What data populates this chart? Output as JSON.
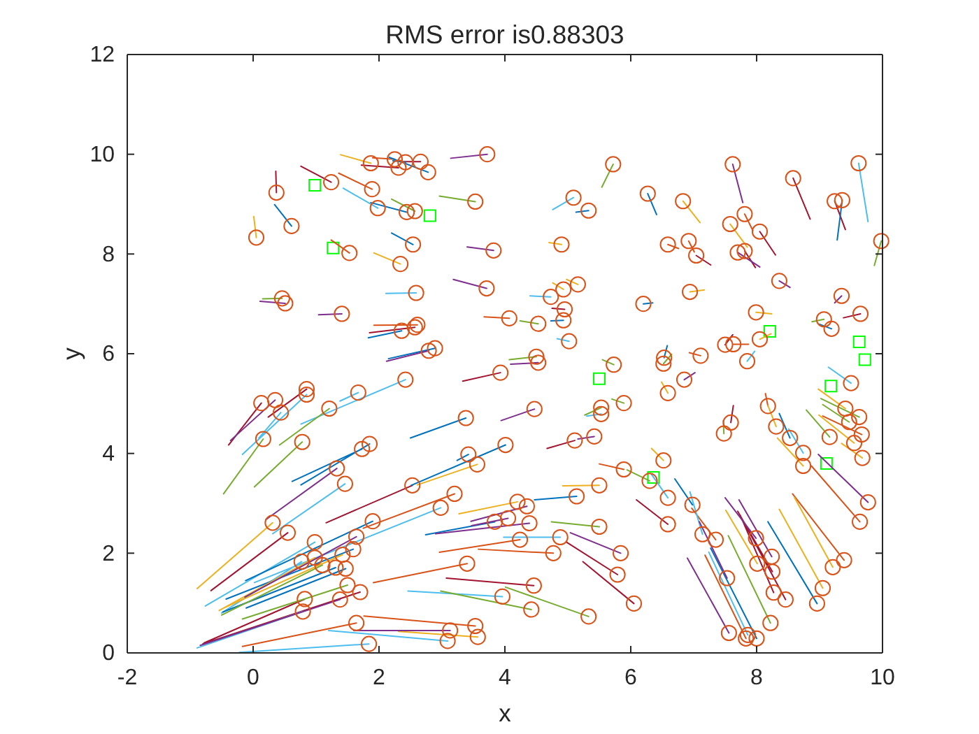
{
  "chart_data": {
    "type": "scatter",
    "title": "RMS error is0.88303",
    "xlabel": "x",
    "ylabel": "y",
    "xlim": [
      -2,
      10
    ],
    "xticks": [
      -2,
      0,
      2,
      4,
      6,
      8,
      10
    ],
    "ylim": [
      0,
      12
    ],
    "yticks": [
      0,
      2,
      4,
      6,
      8,
      10,
      12
    ],
    "series": [
      {
        "marker": "square",
        "color": "#00ff00",
        "x": [
          0.98,
          1.27,
          2.81,
          8.21,
          9.63,
          9.72,
          5.5,
          9.18,
          9.11,
          6.36
        ],
        "values": [
          9.38,
          8.12,
          8.77,
          6.45,
          6.24,
          5.88,
          5.5,
          5.35,
          3.8,
          3.52
        ]
      },
      {
        "type": "line",
        "color": "#a2142f",
        "x": [
          0.76,
          1.24,
          null,
          0.36,
          0.37,
          null,
          2.35,
          2.66,
          null,
          1.72,
          2.31,
          null,
          4.75,
          4.95,
          null,
          1.85,
          2.57,
          null,
          8.85,
          8.58,
          null,
          9.41,
          9.24,
          null,
          8.3,
          8.05,
          null,
          7.27,
          7.04,
          null,
          7.98,
          7.81,
          null,
          9.38,
          9.65,
          null,
          7.62,
          7.5,
          null,
          -0.39,
          0.13,
          null,
          0.24,
          0.85,
          null,
          -0.67,
          0.55,
          null,
          -0.8,
          1.7,
          null,
          -0.78,
          0.82,
          null,
          3.33,
          3.93,
          null,
          4.67,
          5.11,
          null,
          1.16,
          2.53,
          null,
          4.98,
          5.79,
          null,
          5.24,
          6.05,
          null,
          3.07,
          4.46,
          null,
          7.63,
          7.59,
          null,
          7.7,
          8.25,
          null,
          7.74,
          8.27,
          null,
          7.78,
          8.46,
          null,
          6.09,
          6.59
        ],
        "values": [
          9.76,
          9.44,
          null,
          9.66,
          9.23,
          null,
          9.85,
          9.85,
          null,
          9.78,
          9.73,
          null,
          6.91,
          6.89,
          null,
          6.42,
          6.53,
          null,
          8.7,
          9.52,
          null,
          8.49,
          9.06,
          null,
          7.98,
          8.45,
          null,
          7.78,
          7.97,
          null,
          7.73,
          8.06,
          null,
          6.72,
          6.8,
          null,
          6.38,
          6.18,
          null,
          4.17,
          5.01,
          null,
          4.73,
          5.29,
          null,
          1.25,
          2.41,
          null,
          0.18,
          1.22,
          null,
          0.2,
          1.08,
          null,
          5.45,
          5.62,
          null,
          4.1,
          4.26,
          null,
          2.61,
          3.36,
          null,
          2.22,
          1.57,
          null,
          1.83,
          0.99,
          null,
          1.5,
          1.35,
          null,
          4.96,
          4.62,
          null,
          2.84,
          1.63,
          null,
          2.76,
          1.21,
          null,
          2.66,
          1.07,
          null,
          3.07,
          2.58
        ]
      },
      {
        "type": "line",
        "color": "#d95319",
        "x": [
          1.36,
          1.89,
          null,
          1.24,
          1.53,
          null,
          1.9,
          2.25,
          null,
          3.67,
          4.07,
          null,
          1.92,
          2.61,
          null,
          7.94,
          7.81,
          null,
          6.76,
          6.59,
          null,
          7.01,
          6.92,
          null,
          7.87,
          7.63,
          null,
          -0.17,
          1.64,
          null,
          5.5,
          5.89,
          null,
          1.75,
          3.2,
          null,
          2.96,
          4.24,
          null,
          3.58,
          4.77,
          null,
          1.91,
          3.4,
          null,
          1.76,
          3.53,
          null,
          6.93,
          7.11,
          null,
          8.14,
          8.18,
          null,
          9.05,
          9.67,
          null,
          8.87,
          9.64,
          null,
          8.57,
          9.39,
          null,
          7.18,
          7.83,
          null,
          6.97,
          7.35
        ],
        "values": [
          9.62,
          9.3,
          null,
          8.28,
          8.02,
          null,
          9.93,
          9.9,
          null,
          6.74,
          6.71,
          null,
          6.57,
          6.58,
          null,
          8.47,
          8.8,
          null,
          8.11,
          8.19,
          null,
          8.04,
          8.26,
          null,
          6.19,
          6.19,
          null,
          0.13,
          0.6,
          null,
          3.79,
          3.68,
          null,
          2.5,
          3.19,
          null,
          2.02,
          2.27,
          null,
          2.08,
          2.0,
          null,
          1.41,
          1.79,
          null,
          0.74,
          0.54,
          null,
          6.02,
          5.96,
          null,
          5.2,
          4.95,
          null,
          4.75,
          4.38,
          null,
          3.75,
          2.63,
          null,
          3.19,
          1.86,
          null,
          1.96,
          0.29,
          null,
          2.9,
          2.27
        ]
      },
      {
        "type": "line",
        "color": "#4dbeee",
        "x": [
          1.43,
          1.98,
          null,
          2.11,
          2.59,
          null,
          4.4,
          4.73,
          null,
          4.83,
          5.02,
          null,
          4.76,
          5.09,
          null,
          9.77,
          9.62,
          null,
          -0.17,
          0.85,
          null,
          0.09,
          0.44,
          null,
          1.38,
          1.67,
          null,
          0.76,
          2.42,
          null,
          0.31,
          1.46,
          null,
          -0.76,
          0.98,
          null,
          -0.5,
          0.77,
          null,
          -0.89,
          0.79,
          null,
          -0.22,
          1.84,
          null,
          5.3,
          5.53,
          null,
          0.02,
          2.98,
          null,
          3.98,
          4.88,
          null,
          2.46,
          3.96,
          null,
          1.2,
          3.09,
          null,
          7.97,
          7.85,
          null,
          8.51,
          8.74,
          null,
          9.14,
          9.5,
          null,
          7.24,
          7.86,
          null,
          6.94,
          7.14,
          null,
          6.33,
          6.59
        ],
        "values": [
          9.32,
          8.92,
          null,
          7.21,
          7.22,
          null,
          7.16,
          7.14,
          null,
          6.3,
          6.25,
          null,
          8.89,
          9.13,
          null,
          8.65,
          9.82,
          null,
          3.98,
          5.18,
          null,
          4.31,
          4.82,
          null,
          5.05,
          5.22,
          null,
          4.59,
          5.48,
          null,
          2.39,
          3.39,
          null,
          0.94,
          2.22,
          null,
          0.8,
          1.83,
          null,
          0.1,
          0.83,
          null,
          0.01,
          0.18,
          null,
          4.75,
          4.79,
          null,
          1.41,
          2.91,
          null,
          2.32,
          2.32,
          null,
          1.24,
          1.13,
          null,
          0.45,
          0.24,
          null,
          6.05,
          5.85,
          null,
          4.49,
          4.01,
          null,
          5.73,
          5.41,
          null,
          2.02,
          0.36,
          null,
          3.23,
          2.38,
          null,
          3.58,
          3.11
        ]
      },
      {
        "type": "line",
        "color": "#0072bd",
        "x": [
          0.34,
          0.61,
          null,
          2.22,
          2.42,
          null,
          2.16,
          2.78,
          null,
          1.87,
          2.44,
          null,
          2.2,
          2.54,
          null,
          4.73,
          4.93,
          null,
          5.13,
          5.33,
          null,
          1.83,
          2.36,
          null,
          2.15,
          2.89,
          null,
          9.28,
          9.36,
          null,
          6.41,
          6.27,
          null,
          9.0,
          9.19,
          null,
          6.35,
          6.2,
          null,
          0.62,
          1.73,
          null,
          0.76,
          1.85,
          null,
          -0.12,
          1.9,
          null,
          -0.43,
          1.59,
          null,
          -0.48,
          1.31,
          null,
          -0.11,
          1.47,
          null,
          2.5,
          3.38,
          null,
          2.51,
          4.01,
          null,
          3.24,
          3.42,
          null,
          4.47,
          5.14,
          null,
          2.74,
          3.84,
          null,
          6.58,
          6.53,
          null,
          8.36,
          8.53,
          null,
          8.18,
          8.96,
          null,
          7.27,
          8.0,
          null,
          6.7,
          6.98
        ],
        "values": [
          8.99,
          8.56,
          null,
          9.87,
          9.84,
          null,
          9.94,
          9.64,
          null,
          9.03,
          8.84,
          null,
          8.42,
          8.19,
          null,
          6.66,
          6.67,
          null,
          8.84,
          8.87,
          null,
          6.32,
          6.46,
          null,
          5.9,
          6.11,
          null,
          8.28,
          9.08,
          null,
          8.79,
          9.21,
          null,
          6.59,
          6.5,
          null,
          7.02,
          7.0,
          null,
          3.44,
          4.09,
          null,
          3.37,
          4.19,
          null,
          1.45,
          2.64,
          null,
          1.08,
          2.08,
          null,
          0.82,
          1.71,
          null,
          0.9,
          1.69,
          null,
          4.31,
          4.71,
          null,
          3.36,
          4.17,
          null,
          3.86,
          3.98,
          null,
          3.07,
          3.14,
          null,
          2.37,
          2.63,
          null,
          6.16,
          5.92,
          null,
          4.8,
          4.31,
          null,
          2.63,
          0.99,
          null,
          2.1,
          0.29,
          null,
          3.49,
          2.97
        ]
      },
      {
        "type": "line",
        "color": "#edb120",
        "x": [
          0.01,
          0.05,
          null,
          1.39,
          1.87,
          null,
          1.92,
          2.34,
          null,
          4.76,
          4.93,
          null,
          4.98,
          5.16,
          null,
          4.7,
          4.9,
          null,
          7.1,
          6.83,
          null,
          7.85,
          7.58,
          null,
          7.17,
          6.94,
          null,
          8.24,
          7.99,
          null,
          8.23,
          8.05,
          null,
          -0.89,
          0.31,
          null,
          -0.54,
          0.98,
          null,
          -0.47,
          1.42,
          null,
          2.61,
          3.56,
          null,
          4.92,
          5.5,
          null,
          3.27,
          4.2,
          null,
          2.31,
          3.57,
          null,
          6.49,
          6.59,
          null,
          8.18,
          8.31,
          null,
          8.33,
          8.74,
          null,
          8.98,
          9.41,
          null,
          8.99,
          9.55,
          null,
          9.35,
          9.68,
          null,
          8.6,
          9.21,
          null,
          8.36,
          9.05,
          null,
          7.51,
          8.01,
          null,
          6.33,
          6.52
        ],
        "values": [
          8.75,
          8.33,
          null,
          9.99,
          9.82,
          null,
          8.02,
          7.8,
          null,
          7.42,
          7.29,
          null,
          7.49,
          7.39,
          null,
          8.23,
          8.19,
          null,
          8.63,
          9.06,
          null,
          8.14,
          8.6,
          null,
          7.28,
          7.24,
          null,
          6.8,
          6.83,
          null,
          6.4,
          6.29,
          null,
          1.29,
          2.61,
          null,
          0.85,
          1.91,
          null,
          0.9,
          1.97,
          null,
          3.37,
          3.78,
          null,
          3.35,
          3.36,
          null,
          2.79,
          3.03,
          null,
          0.43,
          0.32,
          null,
          5.43,
          5.21,
          null,
          4.96,
          4.54,
          null,
          4.31,
          3.75,
          null,
          5.29,
          4.9,
          null,
          4.77,
          4.21,
          null,
          4.2,
          3.91,
          null,
          3.12,
          1.72,
          null,
          2.88,
          1.3,
          null,
          2.86,
          1.79,
          null,
          4.1,
          3.86
        ]
      },
      {
        "type": "line",
        "color": "#77ac30",
        "x": [
          0.15,
          0.46,
          null,
          2.2,
          2.57,
          null,
          2.96,
          3.53,
          null,
          4.24,
          4.53,
          null,
          5.54,
          5.72,
          null,
          9.87,
          9.98,
          null,
          8.88,
          9.07,
          null,
          -0.47,
          0.16,
          null,
          0.02,
          0.78,
          null,
          0.42,
          1.21,
          null,
          -0.5,
          1.1,
          null,
          -0.17,
          1.5,
          null,
          4.07,
          4.5,
          null,
          5.55,
          5.73,
          null,
          5.7,
          5.89,
          null,
          5.27,
          5.53,
          null,
          4.74,
          5.5,
          null,
          2.98,
          4.42,
          null,
          4.01,
          5.33,
          null,
          6.65,
          6.52,
          null,
          7.47,
          7.48,
          null,
          9.02,
          9.63,
          null,
          9.05,
          9.47,
          null,
          8.79,
          9.16,
          null,
          7.55,
          8.22,
          null,
          5.94,
          6.3
        ],
        "values": [
          7.1,
          7.11,
          null,
          9.1,
          8.86,
          null,
          9.16,
          9.05,
          null,
          6.66,
          6.6,
          null,
          9.34,
          9.8,
          null,
          7.77,
          8.26,
          null,
          6.64,
          6.69,
          null,
          3.19,
          4.29,
          null,
          3.33,
          4.23,
          null,
          4.17,
          4.9,
          null,
          0.76,
          1.76,
          null,
          0.68,
          1.36,
          null,
          5.88,
          5.94,
          null,
          5.88,
          5.78,
          null,
          5.09,
          5.01,
          null,
          4.77,
          4.92,
          null,
          2.63,
          2.53,
          null,
          1.24,
          0.87,
          null,
          1.32,
          0.73,
          null,
          5.99,
          5.8,
          null,
          4.66,
          4.4,
          null,
          5.1,
          4.73,
          null,
          4.98,
          4.63,
          null,
          4.87,
          4.33,
          null,
          2.35,
          0.6,
          null,
          3.67,
          3.45
        ]
      },
      {
        "type": "line",
        "color": "#7e2f8e",
        "x": [
          0.11,
          0.51,
          null,
          1.04,
          1.41,
          null,
          3.14,
          3.72,
          null,
          3.4,
          3.82,
          null,
          3.18,
          3.71,
          null,
          2.12,
          2.79,
          null,
          7.78,
          7.62,
          null,
          8.05,
          7.7,
          null,
          8.53,
          8.36,
          null,
          9.24,
          9.35,
          null,
          -0.36,
          0.35,
          null,
          0.2,
          1.33,
          null,
          -0.13,
          1.64,
          null,
          -0.84,
          1.38,
          null,
          4.09,
          4.53,
          null,
          3.94,
          4.47,
          null,
          5.16,
          5.42,
          null,
          3.46,
          4.35,
          null,
          3.47,
          4.05,
          null,
          2.9,
          4.39,
          null,
          5.04,
          5.84,
          null,
          1.6,
          3.13,
          null,
          7.02,
          6.85,
          null,
          8.98,
          9.77,
          null,
          7.5,
          7.99,
          null,
          7.72,
          8.24,
          null,
          6.9,
          7.56,
          null,
          7.09,
          7.53
        ],
        "values": [
          7.05,
          7.01,
          null,
          6.78,
          6.8,
          null,
          9.92,
          10.0,
          null,
          8.14,
          8.07,
          null,
          7.49,
          7.31,
          null,
          5.85,
          6.06,
          null,
          9.03,
          9.8,
          null,
          7.74,
          8.03,
          null,
          7.33,
          7.46,
          null,
          7.02,
          7.16,
          null,
          4.26,
          5.07,
          null,
          2.67,
          3.7,
          null,
          1.12,
          2.33,
          null,
          0.15,
          1.07,
          null,
          5.79,
          5.82,
          null,
          4.66,
          4.89,
          null,
          4.29,
          4.34,
          null,
          2.64,
          2.94,
          null,
          2.55,
          2.7,
          null,
          2.39,
          2.6,
          null,
          2.41,
          2.0,
          null,
          0.45,
          0.45,
          null,
          5.62,
          5.48,
          null,
          3.98,
          3.02,
          null,
          3.11,
          2.3,
          null,
          3.07,
          1.93,
          null,
          1.9,
          0.4,
          null,
          2.63,
          1.5
        ]
      },
      {
        "marker": "circle",
        "color": "#d95319",
        "x": [
          1.24,
          1.89,
          1.98,
          0.37,
          0.61,
          0.05,
          1.53,
          0.46,
          0.51,
          1.41,
          1.87,
          2.25,
          2.42,
          2.66,
          2.31,
          2.78,
          3.72,
          2.44,
          2.57,
          3.53,
          2.54,
          2.34,
          3.82,
          3.71,
          2.59,
          4.07,
          4.53,
          4.93,
          4.73,
          4.93,
          5.16,
          4.95,
          5.02,
          5.09,
          5.33,
          4.9,
          5.72,
          2.61,
          2.36,
          2.57,
          2.89,
          2.79,
          7.62,
          8.58,
          9.62,
          9.36,
          9.24,
          9.98,
          6.27,
          6.83,
          7.81,
          7.58,
          8.05,
          6.59,
          6.92,
          7.04,
          7.7,
          7.81,
          8.36,
          9.35,
          9.65,
          9.07,
          9.19,
          6.94,
          6.2,
          7.99,
          8.05,
          7.5,
          7.63,
          0.13,
          0.35,
          0.85,
          0.85,
          0.44,
          0.16,
          0.78,
          1.21,
          1.67,
          2.42,
          1.73,
          1.85,
          1.33,
          1.46,
          0.31,
          0.55,
          1.9,
          0.98,
          1.64,
          1.59,
          0.77,
          0.98,
          1.42,
          1.1,
          1.31,
          1.47,
          1.5,
          1.7,
          1.38,
          0.82,
          0.79,
          1.64,
          1.84,
          4.5,
          4.53,
          3.93,
          5.73,
          5.89,
          5.53,
          5.53,
          4.47,
          3.38,
          5.11,
          5.42,
          4.01,
          3.42,
          3.56,
          2.53,
          5.89,
          5.5,
          5.14,
          3.2,
          2.98,
          4.2,
          4.35,
          3.84,
          4.05,
          4.39,
          4.88,
          4.24,
          4.77,
          5.5,
          5.84,
          5.79,
          6.05,
          3.4,
          4.46,
          3.96,
          4.42,
          5.33,
          3.53,
          3.13,
          3.57,
          3.09,
          6.53,
          6.52,
          7.11,
          7.85,
          6.85,
          6.59,
          7.59,
          7.48,
          8.18,
          8.31,
          8.53,
          8.74,
          8.74,
          9.5,
          9.41,
          9.63,
          9.47,
          9.67,
          9.55,
          9.16,
          9.68,
          9.77,
          9.64,
          9.39,
          9.21,
          9.05,
          8.96,
          7.99,
          8.01,
          8.24,
          8.25,
          8.27,
          8.46,
          8.22,
          7.56,
          7.86,
          8.0,
          7.83,
          7.53,
          7.14,
          7.35,
          6.98,
          6.59,
          6.59,
          6.52,
          6.3
        ],
        "values": [
          9.44,
          9.3,
          8.92,
          9.23,
          8.56,
          8.33,
          8.02,
          7.11,
          7.01,
          6.8,
          9.82,
          9.9,
          9.84,
          9.85,
          9.73,
          9.64,
          10.0,
          8.84,
          8.86,
          9.05,
          8.19,
          7.8,
          8.07,
          7.31,
          7.22,
          6.71,
          6.6,
          6.67,
          7.14,
          7.29,
          7.39,
          6.89,
          6.25,
          9.13,
          8.87,
          8.19,
          9.8,
          6.58,
          6.46,
          6.53,
          6.11,
          6.06,
          9.8,
          9.52,
          9.82,
          9.08,
          9.06,
          8.26,
          9.21,
          9.06,
          8.8,
          8.6,
          8.45,
          8.19,
          8.26,
          7.97,
          8.03,
          8.06,
          7.46,
          7.16,
          6.8,
          6.69,
          6.5,
          7.24,
          7.0,
          6.83,
          6.29,
          6.18,
          6.19,
          5.01,
          5.07,
          5.29,
          5.18,
          4.82,
          4.29,
          4.23,
          4.9,
          5.22,
          5.48,
          4.09,
          4.19,
          3.7,
          3.39,
          2.61,
          2.41,
          2.64,
          2.22,
          2.33,
          2.08,
          1.83,
          1.91,
          1.97,
          1.76,
          1.71,
          1.69,
          1.36,
          1.22,
          1.07,
          1.08,
          0.83,
          0.6,
          0.18,
          5.94,
          5.82,
          5.62,
          5.78,
          5.01,
          4.92,
          4.79,
          4.89,
          4.71,
          4.26,
          4.34,
          4.17,
          3.98,
          3.78,
          3.36,
          3.68,
          3.36,
          3.14,
          3.19,
          2.91,
          3.03,
          2.94,
          2.63,
          2.7,
          2.6,
          2.32,
          2.27,
          2.0,
          2.53,
          2.0,
          1.57,
          0.99,
          1.79,
          1.35,
          1.13,
          0.87,
          0.73,
          0.54,
          0.45,
          0.32,
          0.24,
          5.92,
          5.8,
          5.96,
          5.85,
          5.48,
          5.21,
          4.62,
          4.4,
          4.95,
          4.54,
          4.31,
          4.01,
          3.75,
          5.41,
          4.9,
          4.73,
          4.63,
          4.38,
          4.21,
          4.33,
          3.91,
          3.02,
          2.63,
          1.86,
          1.72,
          1.3,
          0.99,
          2.3,
          1.79,
          1.93,
          1.63,
          1.21,
          1.07,
          0.6,
          0.4,
          0.36,
          0.29,
          0.29,
          1.5,
          2.38,
          2.27,
          2.97,
          3.11,
          2.58,
          3.86,
          3.45
        ]
      }
    ]
  }
}
